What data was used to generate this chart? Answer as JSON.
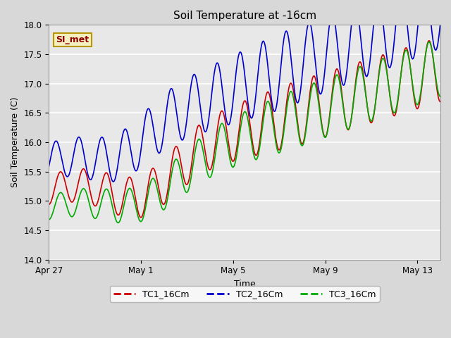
{
  "title": "Soil Temperature at -16cm",
  "xlabel": "Time",
  "ylabel": "Soil Temperature (C)",
  "ylim": [
    14.0,
    18.0
  ],
  "yticks": [
    14.0,
    14.5,
    15.0,
    15.5,
    16.0,
    16.5,
    17.0,
    17.5,
    18.0
  ],
  "xtick_labels": [
    "Apr 27",
    "May 1",
    "May 5",
    "May 9",
    "May 13"
  ],
  "xtick_positions": [
    0,
    4,
    8,
    12,
    16
  ],
  "xlim": [
    0,
    17.0
  ],
  "total_days": 17.0,
  "fig_bg_color": "#d8d8d8",
  "plot_bg_color": "#e8e8e8",
  "grid_color": "#ffffff",
  "annotation_text": "SI_met",
  "annotation_bg": "#f5f0c0",
  "annotation_border": "#b8960a",
  "annotation_text_color": "#8b0000",
  "series": {
    "TC1_16Cm": {
      "color": "#cc0000",
      "linewidth": 1.2
    },
    "TC2_16Cm": {
      "color": "#0000cc",
      "linewidth": 1.2
    },
    "TC3_16Cm": {
      "color": "#00aa00",
      "linewidth": 1.2
    }
  }
}
